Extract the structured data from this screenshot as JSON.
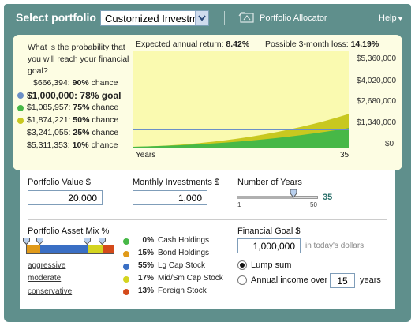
{
  "header": {
    "title": "Select portfolio",
    "portfolio_select": "Customized Investment",
    "allocator_label": "Portfolio Allocator",
    "help_label": "Help"
  },
  "probability": {
    "question": "What is the probability that you will reach your financial goal?",
    "rows": [
      {
        "amount": "$666,394:",
        "pct": "90%",
        "suffix": "chance",
        "color": "",
        "bold": false
      },
      {
        "amount": "$1,000,000:",
        "pct": "78%",
        "suffix": "goal",
        "color": "#6b8fc6",
        "bold": true
      },
      {
        "amount": "$1,085,957:",
        "pct": "75%",
        "suffix": "chance",
        "color": "#47b847",
        "bold": false
      },
      {
        "amount": "$1,874,221:",
        "pct": "50%",
        "suffix": "chance",
        "color": "#c8c820",
        "bold": false
      },
      {
        "amount": "$3,241,055:",
        "pct": "25%",
        "suffix": "chance",
        "color": "",
        "bold": false
      },
      {
        "amount": "$5,311,353:",
        "pct": "10%",
        "suffix": "chance",
        "color": "",
        "bold": false
      }
    ]
  },
  "chart": {
    "expected_label": "Expected annual return:",
    "expected_value": "8.42%",
    "loss_label": "Possible 3-month loss:",
    "loss_value": "14.19%",
    "x_start": "Years",
    "x_end": "35",
    "y_ticks": [
      "$5,360,000",
      "$4,020,000",
      "$2,680,000",
      "$1,340,000",
      "$0"
    ]
  },
  "chart_data": {
    "type": "area",
    "x": [
      0,
      35
    ],
    "ylim": [
      0,
      5360000
    ],
    "goal_line": 1000000,
    "series": [
      {
        "name": "75% chance",
        "color": "#47b847",
        "end_value": 1085957
      },
      {
        "name": "50% chance",
        "color": "#c8c820",
        "end_value": 1874221
      }
    ]
  },
  "controls": {
    "portfolio_value_label": "Portfolio Value $",
    "portfolio_value": "20,000",
    "monthly_label": "Monthly Investments $",
    "monthly_value": "1,000",
    "years_label": "Number of Years",
    "years_value": "35",
    "years_min": "1",
    "years_max": "50",
    "years_fraction": 0.694,
    "mix_label": "Portfolio Asset Mix %",
    "links": [
      "aggressive",
      "moderate",
      "conservative"
    ],
    "assets": [
      {
        "pct": "0%",
        "name": "Cash Holdings",
        "color": "#47b847"
      },
      {
        "pct": "15%",
        "name": "Bond Holdings",
        "color": "#e09a1a"
      },
      {
        "pct": "55%",
        "name": "Lg Cap Stock",
        "color": "#3a6fc4"
      },
      {
        "pct": "17%",
        "name": "Mid/Sm Cap Stock",
        "color": "#d4d420"
      },
      {
        "pct": "13%",
        "name": "Foreign Stock",
        "color": "#d44a1a"
      }
    ],
    "goal_label": "Financial Goal $",
    "goal_value": "1,000,000",
    "goal_suffix": "in today's dollars",
    "lump_label": "Lump sum",
    "annual_label": "Annual income over",
    "annual_years": "15",
    "annual_suffix": "years"
  }
}
